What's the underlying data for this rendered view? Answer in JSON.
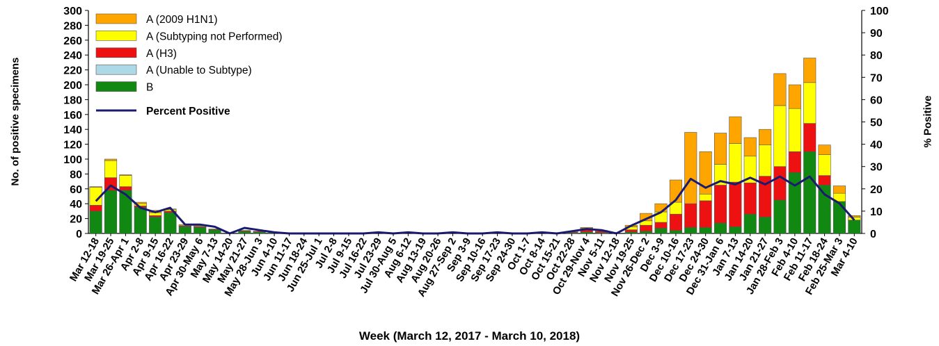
{
  "chart_data": {
    "type": "bar",
    "stacked": true,
    "xlabel": "Week (March 12, 2017 - March 10, 2018)",
    "ylabel": "No. of positive specimens",
    "y2label": "% Positive",
    "ylim": [
      0,
      300
    ],
    "y2lim": [
      0,
      100
    ],
    "yticks": [
      0,
      20,
      40,
      60,
      80,
      100,
      120,
      140,
      160,
      180,
      200,
      220,
      240,
      260,
      280,
      300
    ],
    "y2ticks": [
      0,
      10,
      20,
      30,
      40,
      50,
      60,
      70,
      80,
      90,
      100
    ],
    "legend_position": "top-left",
    "categories": [
      "Mar 12-18",
      "Mar 19-25",
      "Mar 26-Apr 1",
      "Apr 2-8",
      "Apr 9-15",
      "Apr 16-22",
      "Apr 23-29",
      "Apr 30-May 6",
      "May 7-13",
      "May 14-20",
      "May 21-27",
      "May 28-Jun 3",
      "Jun 4-10",
      "Jun 11-17",
      "Jun 18-24",
      "Jun 25-Jul 1",
      "Jul 2-8",
      "Jul 9-15",
      "Jul 16-22",
      "Jul 23-29",
      "Jul 30-Aug 5",
      "Aug 6-12",
      "Aug 13-19",
      "Aug 20-26",
      "Aug 27-Sep 2",
      "Sep 3-9",
      "Sep 10-16",
      "Sep 17-23",
      "Sep 24-30",
      "Oct 1-7",
      "Oct 8-14",
      "Oct 15-21",
      "Oct 22-28",
      "Oct 29-Nov 4",
      "Nov 5-11",
      "Nov 12-18",
      "Nov 19-25",
      "Nov 26-Dec 2",
      "Dec 3-9",
      "Dec 10-16",
      "Dec 17-23",
      "Dec 24-30",
      "Dec 31-Jan 6",
      "Jan 7-13",
      "Jan 14-20",
      "Jan 21-27",
      "Jan 28-Feb 3",
      "Feb 4-10",
      "Feb 11-17",
      "Feb 18-24",
      "Feb 25-Mar 3",
      "Mar 4-10"
    ],
    "series": [
      {
        "name": "B",
        "color": "#118811",
        "values": [
          30,
          58,
          58,
          35,
          22,
          28,
          9,
          8,
          5,
          0,
          3,
          2,
          1,
          0,
          0,
          0,
          0,
          0,
          0,
          0,
          0,
          0,
          0,
          0,
          0,
          0,
          0,
          0,
          0,
          0,
          0,
          0,
          1,
          2,
          1,
          0,
          2,
          3,
          7,
          4,
          8,
          8,
          14,
          9,
          26,
          22,
          45,
          82,
          110,
          65,
          43,
          18
        ]
      },
      {
        "name": "A (Unable to Subtype)",
        "color": "#add8e6",
        "values": [
          0,
          0,
          0,
          0,
          0,
          0,
          0,
          0,
          0,
          0,
          0,
          0,
          0,
          0,
          0,
          0,
          0,
          0,
          0,
          0,
          0,
          0,
          0,
          0,
          0,
          0,
          0,
          0,
          0,
          0,
          0,
          0,
          0,
          0,
          0,
          0,
          0,
          0,
          0,
          0,
          0,
          0,
          0,
          0,
          0,
          0,
          0,
          0,
          0,
          0,
          0,
          0
        ]
      },
      {
        "name": "A (H3)",
        "color": "#ee1111",
        "values": [
          8,
          17,
          5,
          2,
          2,
          2,
          1,
          1,
          1,
          0,
          1,
          1,
          0,
          0,
          0,
          0,
          0,
          0,
          0,
          0,
          0,
          0,
          0,
          0,
          0,
          0,
          0,
          0,
          0,
          0,
          0,
          0,
          1,
          4,
          2,
          0,
          3,
          8,
          8,
          22,
          32,
          36,
          51,
          60,
          42,
          55,
          45,
          28,
          38,
          13,
          0,
          0
        ]
      },
      {
        "name": "A (Subtyping not Performed)",
        "color": "#ffff00",
        "values": [
          24,
          23,
          15,
          3,
          4,
          2,
          1,
          1,
          0,
          0,
          0,
          0,
          0,
          0,
          0,
          0,
          0,
          0,
          0,
          0,
          0,
          0,
          0,
          0,
          0,
          0,
          0,
          0,
          0,
          0,
          0,
          0,
          1,
          1,
          1,
          0,
          4,
          6,
          14,
          16,
          0,
          9,
          28,
          52,
          36,
          42,
          82,
          58,
          55,
          28,
          11,
          4
        ]
      },
      {
        "name": "A (2009 H1N1)",
        "color": "#ffa500",
        "values": [
          1,
          2,
          1,
          2,
          3,
          1,
          1,
          1,
          0,
          0,
          0,
          0,
          0,
          0,
          0,
          0,
          0,
          0,
          0,
          0,
          0,
          0,
          0,
          0,
          0,
          0,
          0,
          0,
          0,
          0,
          0,
          0,
          0,
          1,
          0,
          0,
          2,
          10,
          11,
          30,
          96,
          57,
          42,
          36,
          25,
          21,
          43,
          32,
          33,
          13,
          10,
          2
        ]
      },
      {
        "name": "Percent Positive",
        "type": "line",
        "axis": "right",
        "color": "#1a1a6e",
        "values": [
          14.5,
          21.5,
          17.5,
          11.5,
          9.5,
          11.5,
          4,
          4,
          3,
          0,
          2.5,
          1.5,
          0.5,
          0,
          0,
          0,
          0,
          0,
          0,
          0.5,
          0,
          0.5,
          0,
          0,
          0.5,
          0,
          0,
          0.5,
          0,
          0,
          0.5,
          0,
          1,
          2,
          1.5,
          0,
          3.5,
          6.5,
          9.5,
          15,
          24.5,
          20.5,
          23.5,
          22,
          25,
          22,
          25.5,
          21.5,
          25.5,
          17.5,
          13.5,
          6
        ]
      }
    ],
    "legend_order": [
      "A (2009 H1N1)",
      "A (Subtyping not Performed)",
      "A (H3)",
      "A (Unable to Subtype)",
      "B",
      "Percent Positive"
    ]
  }
}
